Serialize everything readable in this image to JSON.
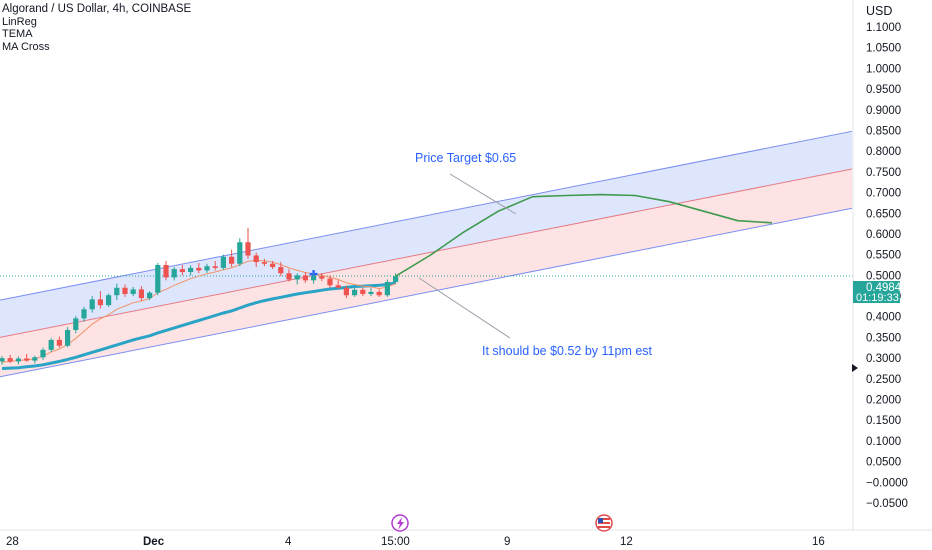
{
  "header": {
    "title": "Algorand / US Dollar, 4h, COINBASE",
    "indicators": [
      "LinReg",
      "TEMA",
      "MA Cross"
    ]
  },
  "price_axis": {
    "currency": "USD",
    "ticks": [
      "1.1000",
      "1.0500",
      "1.0000",
      "0.9500",
      "0.9000",
      "0.8500",
      "0.8000",
      "0.7500",
      "0.7000",
      "0.6500",
      "0.6000",
      "0.5500",
      "0.5000",
      "0.4500",
      "0.4000",
      "0.3500",
      "0.3000",
      "0.2500",
      "0.2000",
      "0.1500",
      "0.1000",
      "0.0500",
      "−0.0000",
      "−0.0500"
    ],
    "last_price": "0.4984",
    "countdown": "01:19:33"
  },
  "time_axis": {
    "ticks": [
      "28",
      "Dec",
      "4",
      "15:00",
      "9",
      "12",
      "16"
    ]
  },
  "annotations": {
    "target": "Price Target $0.65",
    "note": "It should be $0.52 by 11pm est"
  },
  "event_icons": [
    "lightning-event-icon",
    "us-flag-event-icon"
  ],
  "colors": {
    "up": "#26a69a",
    "down": "#ef5350",
    "channel_upper_fill": "#dde6fc",
    "channel_lower_fill": "#fde3e3",
    "channel_line": "#7b8ff0",
    "channel_mid_line": "#e57b86",
    "tema": "#f0946b",
    "ma_slow": "#2aa4c6",
    "projection": "#3f9a4d",
    "annotation_text": "#2962ff",
    "last_price_tag": "#26a69a"
  },
  "chart_data": {
    "type": "candlestick",
    "ylim": [
      -0.07,
      1.12
    ],
    "last_price": 0.4984,
    "candles": [
      {
        "o": 0.292,
        "h": 0.305,
        "l": 0.284,
        "c": 0.3
      },
      {
        "o": 0.3,
        "h": 0.308,
        "l": 0.288,
        "c": 0.292
      },
      {
        "o": 0.292,
        "h": 0.304,
        "l": 0.285,
        "c": 0.299
      },
      {
        "o": 0.299,
        "h": 0.31,
        "l": 0.291,
        "c": 0.294
      },
      {
        "o": 0.294,
        "h": 0.306,
        "l": 0.287,
        "c": 0.302
      },
      {
        "o": 0.302,
        "h": 0.325,
        "l": 0.296,
        "c": 0.32
      },
      {
        "o": 0.32,
        "h": 0.348,
        "l": 0.315,
        "c": 0.344
      },
      {
        "o": 0.344,
        "h": 0.352,
        "l": 0.325,
        "c": 0.33
      },
      {
        "o": 0.33,
        "h": 0.375,
        "l": 0.326,
        "c": 0.368
      },
      {
        "o": 0.368,
        "h": 0.402,
        "l": 0.36,
        "c": 0.396
      },
      {
        "o": 0.396,
        "h": 0.424,
        "l": 0.388,
        "c": 0.418
      },
      {
        "o": 0.418,
        "h": 0.45,
        "l": 0.41,
        "c": 0.442
      },
      {
        "o": 0.442,
        "h": 0.462,
        "l": 0.42,
        "c": 0.428
      },
      {
        "o": 0.428,
        "h": 0.456,
        "l": 0.424,
        "c": 0.452
      },
      {
        "o": 0.452,
        "h": 0.48,
        "l": 0.44,
        "c": 0.47
      },
      {
        "o": 0.47,
        "h": 0.478,
        "l": 0.448,
        "c": 0.455
      },
      {
        "o": 0.455,
        "h": 0.472,
        "l": 0.45,
        "c": 0.466
      },
      {
        "o": 0.466,
        "h": 0.474,
        "l": 0.438,
        "c": 0.445
      },
      {
        "o": 0.445,
        "h": 0.462,
        "l": 0.44,
        "c": 0.458
      },
      {
        "o": 0.458,
        "h": 0.53,
        "l": 0.452,
        "c": 0.525
      },
      {
        "o": 0.525,
        "h": 0.535,
        "l": 0.488,
        "c": 0.495
      },
      {
        "o": 0.495,
        "h": 0.52,
        "l": 0.488,
        "c": 0.515
      },
      {
        "o": 0.515,
        "h": 0.525,
        "l": 0.5,
        "c": 0.508
      },
      {
        "o": 0.508,
        "h": 0.524,
        "l": 0.5,
        "c": 0.518
      },
      {
        "o": 0.518,
        "h": 0.53,
        "l": 0.505,
        "c": 0.512
      },
      {
        "o": 0.512,
        "h": 0.528,
        "l": 0.506,
        "c": 0.522
      },
      {
        "o": 0.522,
        "h": 0.535,
        "l": 0.512,
        "c": 0.518
      },
      {
        "o": 0.518,
        "h": 0.55,
        "l": 0.514,
        "c": 0.545
      },
      {
        "o": 0.545,
        "h": 0.562,
        "l": 0.52,
        "c": 0.528
      },
      {
        "o": 0.528,
        "h": 0.59,
        "l": 0.522,
        "c": 0.58
      },
      {
        "o": 0.58,
        "h": 0.615,
        "l": 0.54,
        "c": 0.548
      },
      {
        "o": 0.548,
        "h": 0.555,
        "l": 0.52,
        "c": 0.532
      },
      {
        "o": 0.532,
        "h": 0.54,
        "l": 0.522,
        "c": 0.528
      },
      {
        "o": 0.528,
        "h": 0.535,
        "l": 0.515,
        "c": 0.52
      },
      {
        "o": 0.52,
        "h": 0.532,
        "l": 0.498,
        "c": 0.505
      },
      {
        "o": 0.505,
        "h": 0.515,
        "l": 0.485,
        "c": 0.49
      },
      {
        "o": 0.49,
        "h": 0.505,
        "l": 0.478,
        "c": 0.5
      },
      {
        "o": 0.5,
        "h": 0.508,
        "l": 0.482,
        "c": 0.488
      },
      {
        "o": 0.488,
        "h": 0.505,
        "l": 0.48,
        "c": 0.498
      },
      {
        "o": 0.498,
        "h": 0.505,
        "l": 0.486,
        "c": 0.492
      },
      {
        "o": 0.492,
        "h": 0.5,
        "l": 0.47,
        "c": 0.476
      },
      {
        "o": 0.476,
        "h": 0.488,
        "l": 0.468,
        "c": 0.47
      },
      {
        "o": 0.47,
        "h": 0.475,
        "l": 0.445,
        "c": 0.452
      },
      {
        "o": 0.452,
        "h": 0.47,
        "l": 0.448,
        "c": 0.465
      },
      {
        "o": 0.465,
        "h": 0.47,
        "l": 0.45,
        "c": 0.455
      },
      {
        "o": 0.455,
        "h": 0.47,
        "l": 0.45,
        "c": 0.46
      },
      {
        "o": 0.46,
        "h": 0.466,
        "l": 0.448,
        "c": 0.452
      },
      {
        "o": 0.452,
        "h": 0.49,
        "l": 0.448,
        "c": 0.484
      },
      {
        "o": 0.484,
        "h": 0.505,
        "l": 0.48,
        "c": 0.498
      }
    ],
    "tema_values": [
      0.29,
      0.292,
      0.294,
      0.296,
      0.298,
      0.305,
      0.315,
      0.322,
      0.333,
      0.348,
      0.365,
      0.382,
      0.395,
      0.405,
      0.418,
      0.426,
      0.434,
      0.438,
      0.444,
      0.458,
      0.466,
      0.476,
      0.484,
      0.492,
      0.498,
      0.504,
      0.508,
      0.514,
      0.518,
      0.526,
      0.534,
      0.536,
      0.535,
      0.532,
      0.526,
      0.518,
      0.512,
      0.507,
      0.503,
      0.5,
      0.495,
      0.49,
      0.482,
      0.478,
      0.474,
      0.472,
      0.468,
      0.472,
      0.48
    ],
    "ma_slow_values": [
      0.275,
      0.276,
      0.277,
      0.279,
      0.281,
      0.284,
      0.288,
      0.292,
      0.297,
      0.302,
      0.308,
      0.314,
      0.32,
      0.326,
      0.332,
      0.338,
      0.344,
      0.349,
      0.354,
      0.361,
      0.367,
      0.373,
      0.379,
      0.385,
      0.391,
      0.397,
      0.403,
      0.409,
      0.414,
      0.421,
      0.428,
      0.434,
      0.439,
      0.443,
      0.447,
      0.451,
      0.455,
      0.458,
      0.461,
      0.464,
      0.467,
      0.469,
      0.471,
      0.473,
      0.474,
      0.475,
      0.476,
      0.478,
      0.482
    ],
    "regression_channel": {
      "upper": {
        "start": 0.44,
        "end": 0.848
      },
      "middle": {
        "start": 0.35,
        "end": 0.757
      },
      "lower": {
        "start": 0.255,
        "end": 0.662
      }
    },
    "projection_path": [
      0.498,
      0.548,
      0.605,
      0.655,
      0.69,
      0.693,
      0.695,
      0.693,
      0.678,
      0.655,
      0.632,
      0.627
    ]
  }
}
